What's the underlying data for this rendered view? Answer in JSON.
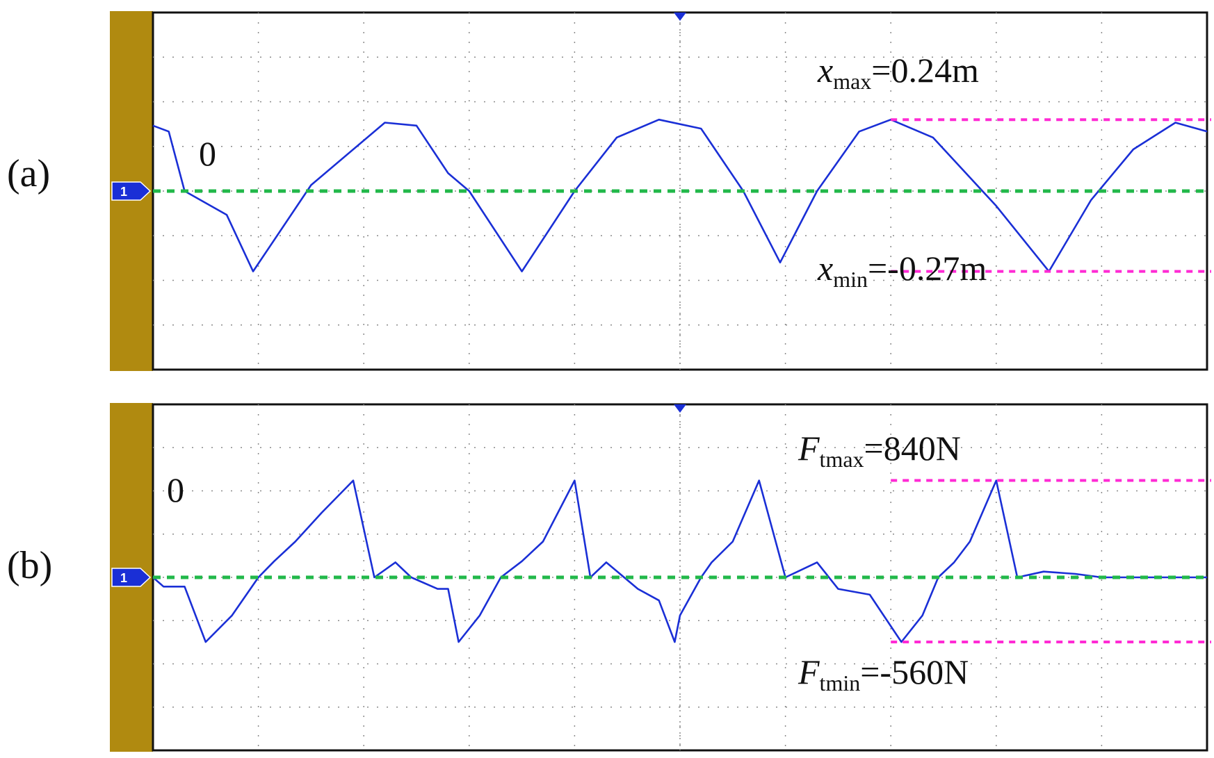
{
  "panels": [
    {
      "label": "(a)",
      "zero_label": "0",
      "channel_marker": "1",
      "annotations": {
        "max": {
          "var": "x",
          "sub": "max",
          "value_text": "=0.24m"
        },
        "min": {
          "var": "x",
          "sub": "min",
          "value_text": "=-0.27m"
        }
      }
    },
    {
      "label": "(b)",
      "zero_label": "0",
      "channel_marker": "1",
      "annotations": {
        "max": {
          "var": "F",
          "sub": "tmax",
          "value_text": "=840N"
        },
        "min": {
          "var": "F",
          "sub": "tmin",
          "value_text": "=-560N"
        }
      }
    }
  ],
  "colors": {
    "frame_left_bar": "#b08a10",
    "trace": "#1a2fd6",
    "zero_line": "#22b84a",
    "limit_lines": "#ff2ad4",
    "grid": "#8a8a8a",
    "channel_marker_bg": "#1a2fd6"
  },
  "chart_data": [
    {
      "type": "line",
      "panel": "a",
      "title": "",
      "xlabel": "",
      "ylabel": "",
      "grid": true,
      "x_divisions": 10,
      "y_divisions": 8,
      "ylim": [
        -0.6,
        0.6
      ],
      "series": [
        {
          "x": [
            0.0,
            0.15,
            0.3,
            0.5,
            0.7,
            0.95,
            1.5,
            2.2,
            2.5,
            2.8,
            3.0,
            3.5,
            4.0,
            4.4,
            4.8,
            5.2,
            5.6,
            5.95,
            6.3,
            6.7,
            7.0,
            7.4,
            8.0,
            8.5,
            8.9,
            9.3,
            9.7,
            10.0
          ],
          "y": [
            0.22,
            0.2,
            0.0,
            -0.04,
            -0.08,
            -0.27,
            0.02,
            0.23,
            0.22,
            0.06,
            0.0,
            -0.27,
            0.0,
            0.18,
            0.24,
            0.21,
            0.0,
            -0.24,
            0.0,
            0.2,
            0.24,
            0.18,
            -0.05,
            -0.27,
            -0.03,
            0.14,
            0.23,
            0.2
          ]
        },
        {
          "name": "zero",
          "values": [
            0,
            0
          ]
        },
        {
          "name": "x_max",
          "values": [
            0.24,
            0.24
          ]
        },
        {
          "name": "x_min",
          "values": [
            -0.27,
            -0.27
          ]
        }
      ]
    },
    {
      "type": "line",
      "panel": "b",
      "title": "",
      "xlabel": "",
      "ylabel": "",
      "grid": true,
      "x_divisions": 10,
      "y_divisions": 8,
      "ylim": [
        -1500,
        1500
      ],
      "series": [
        {
          "x": [
            0.0,
            0.1,
            0.3,
            0.5,
            0.75,
            1.0,
            1.15,
            1.35,
            1.6,
            1.9,
            2.1,
            2.3,
            2.45,
            2.7,
            2.8,
            2.9,
            3.1,
            3.3,
            3.5,
            3.7,
            4.0,
            4.15,
            4.3,
            4.6,
            4.8,
            4.95,
            5.0,
            5.2,
            5.3,
            5.5,
            5.75,
            6.0,
            6.3,
            6.5,
            6.8,
            7.1,
            7.3,
            7.45,
            7.6,
            7.75,
            8.0,
            8.2,
            8.45,
            8.75,
            9.0,
            9.3,
            9.55,
            9.75,
            10.0
          ],
          "y": [
            0,
            -80,
            -80,
            -560,
            -330,
            0,
            140,
            310,
            560,
            840,
            0,
            130,
            0,
            -100,
            -100,
            -560,
            -330,
            0,
            140,
            310,
            840,
            0,
            130,
            -100,
            -200,
            -560,
            -330,
            0,
            130,
            310,
            840,
            0,
            130,
            -100,
            -150,
            -560,
            -330,
            0,
            130,
            310,
            840,
            0,
            50,
            30,
            0,
            0,
            0,
            0,
            0
          ]
        },
        {
          "name": "zero",
          "values": [
            0,
            0
          ]
        },
        {
          "name": "F_tmax",
          "values": [
            840,
            840
          ]
        },
        {
          "name": "F_tmin",
          "values": [
            -560,
            -560
          ]
        }
      ]
    }
  ]
}
